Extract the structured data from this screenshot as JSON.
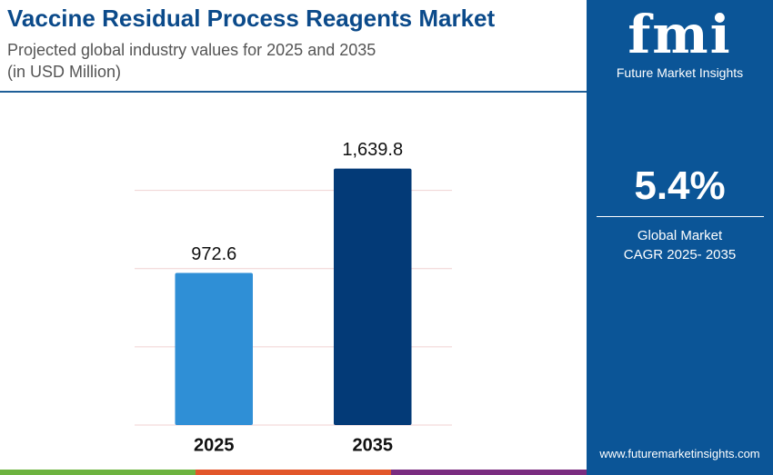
{
  "chart_data": {
    "type": "bar",
    "title": "Vaccine Residual Process Reagents Market",
    "subtitle": [
      "Projected global industry values for 2025 and 2035",
      "(in USD Million)"
    ],
    "categories": [
      "2025",
      "2035"
    ],
    "values": [
      972.6,
      1639.8
    ],
    "value_labels": [
      "972.6",
      "1,639.8"
    ],
    "colors": [
      "#2f8fd6",
      "#033a77"
    ],
    "ylim": [
      0,
      1800
    ],
    "yticks": [
      0,
      500,
      1000,
      1500
    ],
    "grid": true
  },
  "sidebar": {
    "logo": "fmi",
    "brand": "Future Market Insights",
    "cagr": "5.4%",
    "cagr_label": [
      "Global Market",
      "CAGR 2025- 2035"
    ],
    "url": "www.futuremarketinsights.com"
  }
}
